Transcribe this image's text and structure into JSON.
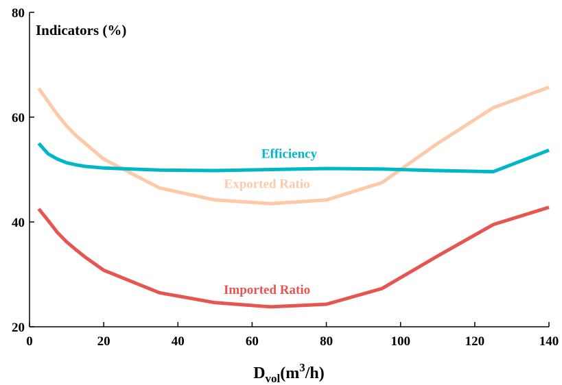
{
  "chart_data": {
    "type": "line",
    "title": "",
    "ylabel": "Indicators (%)",
    "xlabel": {
      "base": "D",
      "subscript": "vol",
      "unit_open": "(m",
      "unit_superscript": "3",
      "unit_close": "/h)"
    },
    "xlim": [
      0,
      140
    ],
    "ylim": [
      20,
      80
    ],
    "xticks": [
      0,
      20,
      40,
      60,
      80,
      100,
      120,
      140
    ],
    "yticks": [
      20,
      40,
      60,
      80
    ],
    "grid": false,
    "series": [
      {
        "name": "Efficiency",
        "color": "#00b7c8",
        "x": [
          2.5,
          5,
          7.5,
          10,
          12.5,
          15,
          20,
          35,
          50,
          65,
          80,
          95,
          110,
          125,
          140
        ],
        "y": [
          55.0,
          53.0,
          52.0,
          51.3,
          50.9,
          50.6,
          50.3,
          49.9,
          49.8,
          50.0,
          50.2,
          50.1,
          49.8,
          49.6,
          53.7
        ]
      },
      {
        "name": "Exported Ratio",
        "color": "#fcc9a9",
        "x": [
          2.5,
          5,
          7.5,
          10,
          12.5,
          15,
          20,
          35,
          50,
          65,
          80,
          95,
          110,
          125,
          140
        ],
        "y": [
          65.5,
          63.0,
          60.5,
          58.3,
          56.5,
          55.0,
          52.0,
          46.5,
          44.2,
          43.5,
          44.2,
          47.5,
          55.0,
          61.8,
          65.7
        ]
      },
      {
        "name": "Imported Ratio",
        "color": "#e65550",
        "x": [
          2.5,
          5,
          7.5,
          10,
          12.5,
          15,
          20,
          35,
          50,
          65,
          80,
          95,
          110,
          125,
          140
        ],
        "y": [
          42.5,
          40.3,
          38.0,
          36.2,
          34.7,
          33.3,
          30.8,
          26.5,
          24.6,
          23.8,
          24.3,
          27.3,
          33.5,
          39.5,
          42.8
        ]
      }
    ],
    "annotations": [
      {
        "text": "Efficiency",
        "series": "Efficiency",
        "x": 70,
        "y": 52.2
      },
      {
        "text": "Exported Ratio",
        "series": "Exported Ratio",
        "x": 64,
        "y": 46.5
      },
      {
        "text": "Imported Ratio",
        "series": "Imported Ratio",
        "x": 64,
        "y": 26.3
      }
    ]
  }
}
